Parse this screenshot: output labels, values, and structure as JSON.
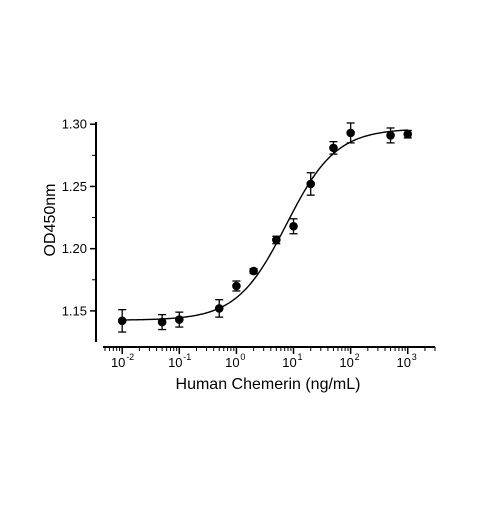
{
  "chart_data": {
    "type": "scatter",
    "xlabel": "Human Chemerin (ng/mL)",
    "ylabel": "OD450nm",
    "xscale": "log",
    "xlim": [
      0.005,
      3000
    ],
    "ylim": [
      1.125,
      1.305
    ],
    "x_tick_labels": [
      "10",
      "10",
      "10",
      "10",
      "10",
      "10"
    ],
    "x_tick_exponents": [
      "-2",
      "-1",
      "0",
      "1",
      "2",
      "3"
    ],
    "x_tick_values": [
      0.01,
      0.1,
      1,
      10,
      100,
      1000
    ],
    "y_ticks": [
      1.15,
      1.2,
      1.25,
      1.3
    ],
    "y_tick_labels": [
      "1.15",
      "1.20",
      "1.25",
      "1.30"
    ],
    "grid": false,
    "series": [
      {
        "x": [
          0.01,
          0.05,
          0.1,
          0.5,
          1,
          2,
          5,
          10,
          20,
          50,
          100,
          500,
          1000
        ],
        "y": [
          1.142,
          1.141,
          1.143,
          1.152,
          1.17,
          1.182,
          1.207,
          1.218,
          1.252,
          1.281,
          1.293,
          1.291,
          1.292
        ],
        "error": [
          0.009,
          0.006,
          0.006,
          0.007,
          0.004,
          0.002,
          0.003,
          0.006,
          0.009,
          0.005,
          0.008,
          0.006,
          0.003
        ]
      }
    ],
    "fit": {
      "model": "4PL",
      "bottom": 1.1425,
      "top": 1.2965,
      "ec50": 7.5,
      "hill": 1.0
    }
  }
}
